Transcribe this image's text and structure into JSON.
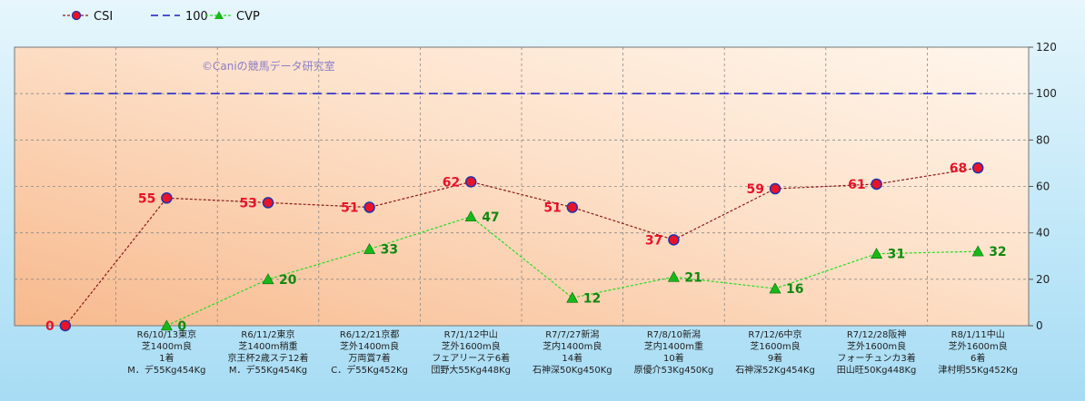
{
  "chart_data": {
    "type": "line",
    "watermark": "©Caniの競馬データ研究室",
    "legend_position": "top-left",
    "ylim": [
      0,
      120
    ],
    "y_ticks": [
      0,
      20,
      40,
      60,
      80,
      100,
      120
    ],
    "grid": true,
    "categories": [
      {
        "lines": []
      },
      {
        "lines": [
          "R6/10/13東京",
          "芝1400m良",
          "1着",
          "M．デ55Kg454Kg"
        ]
      },
      {
        "lines": [
          "R6/11/2東京",
          "芝1400m稍重",
          "京王杯2歳ステ12着",
          "M．デ55Kg454Kg"
        ]
      },
      {
        "lines": [
          "R6/12/21京都",
          "芝外1400m良",
          "万両賞7着",
          "C．デ55Kg452Kg"
        ]
      },
      {
        "lines": [
          "R7/1/12中山",
          "芝外1600m良",
          "フェアリーステ6着",
          "団野大55Kg448Kg"
        ]
      },
      {
        "lines": [
          "R7/7/27新潟",
          "芝内1400m良",
          "14着",
          "石神深50Kg450Kg"
        ]
      },
      {
        "lines": [
          "R7/8/10新潟",
          "芝内1400m重",
          "10着",
          "原優介53Kg450Kg"
        ]
      },
      {
        "lines": [
          "R7/12/6中京",
          "芝1600m良",
          "9着",
          "石神深52Kg454Kg"
        ]
      },
      {
        "lines": [
          "R7/12/28阪神",
          "芝外1600m良",
          "フォーチュンカ3着",
          "田山旺50Kg448Kg"
        ]
      },
      {
        "lines": [
          "R8/1/11中山",
          "芝外1600m良",
          "6着",
          "津村明55Kg452Kg"
        ]
      }
    ],
    "series": [
      {
        "name": "CSI",
        "color": "#8b1a1a",
        "marker_color": "#e8132a",
        "marker_edge": "#2233aa",
        "label_color": "#e8132a",
        "values": [
          0,
          55,
          53,
          51,
          62,
          51,
          37,
          59,
          61,
          68
        ],
        "labels": [
          "0",
          "55",
          "53",
          "51",
          "62",
          "51",
          "37",
          "59",
          "61",
          "68"
        ]
      },
      {
        "name": "100",
        "color": "#1a1acc",
        "values": [
          100,
          100,
          100,
          100,
          100,
          100,
          100,
          100,
          100,
          100
        ]
      },
      {
        "name": "CVP",
        "color": "#22dd22",
        "marker_color": "#18b818",
        "label_color": "#118811",
        "values": [
          null,
          0,
          20,
          33,
          47,
          12,
          21,
          16,
          31,
          32
        ],
        "labels": [
          "",
          "0",
          "20",
          "33",
          "47",
          "12",
          "21",
          "16",
          "31",
          "32"
        ]
      }
    ]
  }
}
